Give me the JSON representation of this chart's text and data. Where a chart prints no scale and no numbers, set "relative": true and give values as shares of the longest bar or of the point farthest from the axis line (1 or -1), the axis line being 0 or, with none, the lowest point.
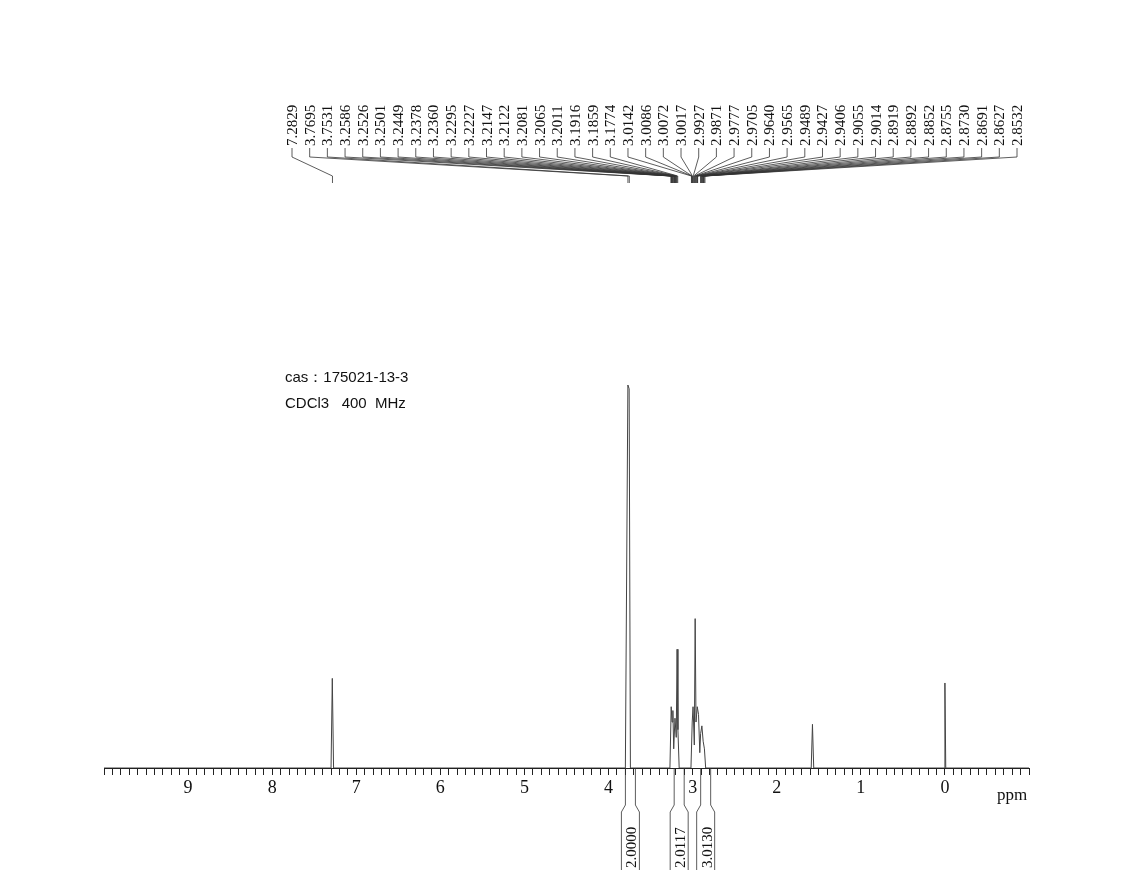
{
  "chart_data": {
    "type": "line",
    "relative": true,
    "xlabel": "ppm",
    "xlim": [
      10,
      -1
    ],
    "xticks": [
      {
        "value": 10,
        "label": null
      },
      {
        "value": 9.9,
        "label": null
      },
      {
        "value": 9.8,
        "label": null
      },
      {
        "value": 9.7,
        "label": null
      },
      {
        "value": 9.6,
        "label": null
      },
      {
        "value": 9.5,
        "label": null
      },
      {
        "value": 9.4,
        "label": null
      },
      {
        "value": 9.3,
        "label": null
      },
      {
        "value": 9.2,
        "label": null
      },
      {
        "value": 9.1,
        "label": null
      },
      9,
      {
        "value": 8.9,
        "label": null
      },
      {
        "value": 8.8,
        "label": null
      },
      {
        "value": 8.7,
        "label": null
      },
      {
        "value": 8.6,
        "label": null
      },
      {
        "value": 8.5,
        "label": null
      },
      {
        "value": 8.4,
        "label": null
      },
      {
        "value": 8.3,
        "label": null
      },
      {
        "value": 8.2,
        "label": null
      },
      {
        "value": 8.1,
        "label": null
      },
      8,
      {
        "value": 7.9,
        "label": null
      },
      {
        "value": 7.8,
        "label": null
      },
      {
        "value": 7.7,
        "label": null
      },
      {
        "value": 7.6,
        "label": null
      },
      {
        "value": 7.5,
        "label": null
      },
      {
        "value": 7.4,
        "label": null
      },
      {
        "value": 7.3,
        "label": null
      },
      {
        "value": 7.2,
        "label": null
      },
      {
        "value": 7.1,
        "label": null
      },
      7,
      {
        "value": 6.9,
        "label": null
      },
      {
        "value": 6.8,
        "label": null
      },
      {
        "value": 6.7,
        "label": null
      },
      {
        "value": 6.6,
        "label": null
      },
      {
        "value": 6.5,
        "label": null
      },
      {
        "value": 6.4,
        "label": null
      },
      {
        "value": 6.3,
        "label": null
      },
      {
        "value": 6.2,
        "label": null
      },
      {
        "value": 6.1,
        "label": null
      },
      6,
      {
        "value": 5.9,
        "label": null
      },
      {
        "value": 5.8,
        "label": null
      },
      {
        "value": 5.7,
        "label": null
      },
      {
        "value": 5.6,
        "label": null
      },
      {
        "value": 5.5,
        "label": null
      },
      {
        "value": 5.4,
        "label": null
      },
      {
        "value": 5.3,
        "label": null
      },
      {
        "value": 5.2,
        "label": null
      },
      {
        "value": 5.1,
        "label": null
      },
      5,
      {
        "value": 4.9,
        "label": null
      },
      {
        "value": 4.8,
        "label": null
      },
      {
        "value": 4.7,
        "label": null
      },
      {
        "value": 4.6,
        "label": null
      },
      {
        "value": 4.5,
        "label": null
      },
      {
        "value": 4.4,
        "label": null
      },
      {
        "value": 4.3,
        "label": null
      },
      {
        "value": 4.2,
        "label": null
      },
      {
        "value": 4.1,
        "label": null
      },
      4,
      {
        "value": 3.9,
        "label": null
      },
      {
        "value": 3.8,
        "label": null
      },
      {
        "value": 3.7,
        "label": null
      },
      {
        "value": 3.6,
        "label": null
      },
      {
        "value": 3.5,
        "label": null
      },
      {
        "value": 3.4,
        "label": null
      },
      {
        "value": 3.3,
        "label": null
      },
      {
        "value": 3.2,
        "label": null
      },
      {
        "value": 3.1,
        "label": null
      },
      3,
      {
        "value": 2.9,
        "label": null
      },
      {
        "value": 2.8,
        "label": null
      },
      {
        "value": 2.7,
        "label": null
      },
      {
        "value": 2.6,
        "label": null
      },
      {
        "value": 2.5,
        "label": null
      },
      {
        "value": 2.4,
        "label": null
      },
      {
        "value": 2.3,
        "label": null
      },
      {
        "value": 2.2,
        "label": null
      },
      {
        "value": 2.1,
        "label": null
      },
      2,
      {
        "value": 1.9,
        "label": null
      },
      {
        "value": 1.8,
        "label": null
      },
      {
        "value": 1.7,
        "label": null
      },
      {
        "value": 1.6,
        "label": null
      },
      {
        "value": 1.5,
        "label": null
      },
      {
        "value": 1.4,
        "label": null
      },
      {
        "value": 1.3,
        "label": null
      },
      {
        "value": 1.2,
        "label": null
      },
      {
        "value": 1.1,
        "label": null
      },
      1,
      {
        "value": 0.9,
        "label": null
      },
      {
        "value": 0.8,
        "label": null
      },
      {
        "value": 0.7,
        "label": null
      },
      {
        "value": 0.6,
        "label": null
      },
      {
        "value": 0.5,
        "label": null
      },
      {
        "value": 0.4,
        "label": null
      },
      {
        "value": 0.3,
        "label": null
      },
      {
        "value": 0.2,
        "label": null
      },
      {
        "value": 0.1,
        "label": null
      },
      0,
      {
        "value": -0.1,
        "label": null
      },
      {
        "value": -0.2,
        "label": null
      },
      {
        "value": -0.3,
        "label": null
      },
      {
        "value": -0.4,
        "label": null
      },
      {
        "value": -0.5,
        "label": null
      },
      {
        "value": -0.6,
        "label": null
      },
      {
        "value": -0.7,
        "label": null
      },
      {
        "value": -0.8,
        "label": null
      },
      {
        "value": -0.9,
        "label": null
      },
      {
        "value": -1,
        "label": null
      }
    ],
    "series": [
      {
        "color": "#444444",
        "x": [
          10,
          7.3,
          7.285,
          7.27,
          3.8,
          3.77,
          3.755,
          3.74,
          3.27,
          3.255,
          3.245,
          3.235,
          3.225,
          3.21,
          3.195,
          3.185,
          3.175,
          3.16,
          3.02,
          3.005,
          2.995,
          2.98,
          2.97,
          2.96,
          2.945,
          2.93,
          2.915,
          2.905,
          2.89,
          2.875,
          2.86,
          2.845,
          1.59,
          1.575,
          1.56,
          0.01,
          0,
          -0.01,
          -1
        ],
        "values": [
          0,
          0,
          0.234,
          0,
          0,
          1,
          0.99,
          0,
          0,
          0.16,
          0.12,
          0.15,
          0.05,
          0.13,
          0.08,
          0.31,
          0.1,
          0,
          0,
          0.12,
          0.16,
          0.06,
          0.39,
          0.12,
          0.16,
          0.14,
          0.04,
          0.09,
          0.11,
          0.07,
          0.05,
          0,
          0,
          0.114,
          0,
          0,
          0.222,
          0,
          0
        ]
      }
    ],
    "annotations": [
      "cas：175021-13-3",
      "CDCl3   400  MHz",
      {
        "text": "7.2829",
        "x": 7.2829
      },
      {
        "text": "3.7695",
        "x": 3.7695
      },
      {
        "text": "3.7531",
        "x": 3.7531
      },
      {
        "text": "3.2586",
        "x": 3.2586
      },
      {
        "text": "3.2526",
        "x": 3.2526
      },
      {
        "text": "3.2501",
        "x": 3.2501
      },
      {
        "text": "3.2449",
        "x": 3.2449
      },
      {
        "text": "3.2378",
        "x": 3.2378
      },
      {
        "text": "3.2360",
        "x": 3.236
      },
      {
        "text": "3.2295",
        "x": 3.2295
      },
      {
        "text": "3.2227",
        "x": 3.2227
      },
      {
        "text": "3.2147",
        "x": 3.2147
      },
      {
        "text": "3.2122",
        "x": 3.2122
      },
      {
        "text": "3.2081",
        "x": 3.2081
      },
      {
        "text": "3.2065",
        "x": 3.2065
      },
      {
        "text": "3.2011",
        "x": 3.2011
      },
      {
        "text": "3.1916",
        "x": 3.1916
      },
      {
        "text": "3.1859",
        "x": 3.1859
      },
      {
        "text": "3.1774",
        "x": 3.1774
      },
      {
        "text": "3.0142",
        "x": 3.0142
      },
      {
        "text": "3.0086",
        "x": 3.0086
      },
      {
        "text": "3.0072",
        "x": 3.0072
      },
      {
        "text": "3.0017",
        "x": 3.0017
      },
      {
        "text": "2.9927",
        "x": 2.9927
      },
      {
        "text": "2.9871",
        "x": 2.9871
      },
      {
        "text": "2.9777",
        "x": 2.9777
      },
      {
        "text": "2.9705",
        "x": 2.9705
      },
      {
        "text": "2.9640",
        "x": 2.964
      },
      {
        "text": "2.9565",
        "x": 2.9565
      },
      {
        "text": "2.9489",
        "x": 2.9489
      },
      {
        "text": "2.9427",
        "x": 2.9427
      },
      {
        "text": "2.9406",
        "x": 2.9406
      },
      {
        "text": "2.9055",
        "x": 2.9055
      },
      {
        "text": "2.9014",
        "x": 2.9014
      },
      {
        "text": "2.8919",
        "x": 2.8919
      },
      {
        "text": "2.8892",
        "x": 2.8892
      },
      {
        "text": "2.8852",
        "x": 2.8852
      },
      {
        "text": "2.8755",
        "x": 2.8755
      },
      {
        "text": "2.8730",
        "x": 2.873
      },
      {
        "text": "2.8691",
        "x": 2.8691
      },
      {
        "text": "2.8627",
        "x": 2.8627
      },
      {
        "text": "2.8532",
        "x": 2.8532
      },
      {
        "text": "2.0000",
        "x": 3.74,
        "y": 0
      },
      {
        "text": "2.0117",
        "x": 3.16,
        "y": 0
      },
      {
        "text": "3.0130",
        "x": 2.845,
        "y": 0
      }
    ]
  }
}
